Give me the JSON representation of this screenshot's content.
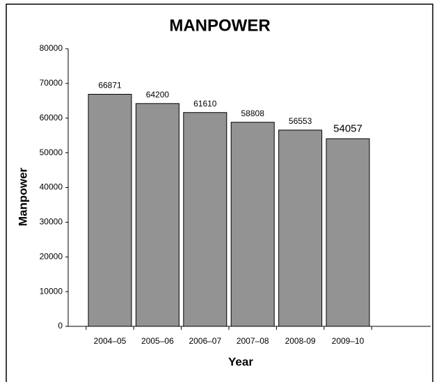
{
  "chart_data": {
    "type": "bar",
    "title": "MANPOWER",
    "x_label": "Year",
    "y_label": "Manpower",
    "categories": [
      "2004–05",
      "2005–06",
      "2006–07",
      "2007–08",
      "2008-09",
      "2009–10"
    ],
    "values": [
      66871,
      64200,
      61610,
      58808,
      56553,
      54057
    ],
    "color": "#939393",
    "ylim": [
      0,
      80000
    ],
    "yticks": [
      0,
      10000,
      20000,
      30000,
      40000,
      50000,
      60000,
      70000,
      80000
    ],
    "grid": false
  }
}
